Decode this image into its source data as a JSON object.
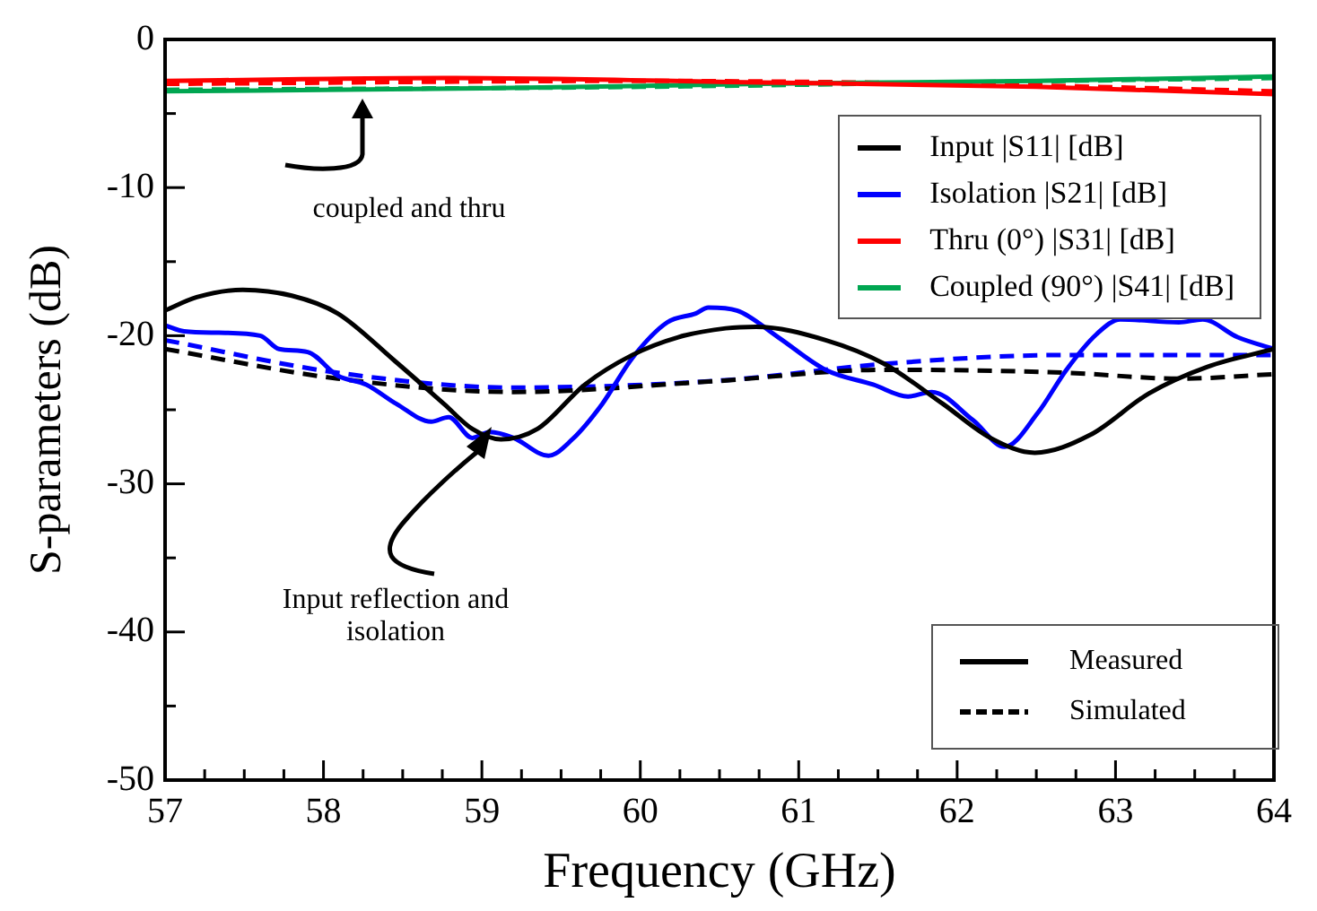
{
  "chart_data": {
    "type": "line",
    "xlabel": "Frequency (GHz)",
    "ylabel": "S-parameters (dB)",
    "xlim": [
      57,
      64
    ],
    "ylim": [
      -50,
      0
    ],
    "xticks": [
      57,
      {
        "value": 57.25,
        "label": null
      },
      {
        "value": 57.5,
        "label": null
      },
      {
        "value": 57.75,
        "label": null
      },
      58,
      {
        "value": 58.25,
        "label": null
      },
      {
        "value": 58.5,
        "label": null
      },
      {
        "value": 58.75,
        "label": null
      },
      59,
      {
        "value": 59.25,
        "label": null
      },
      {
        "value": 59.5,
        "label": null
      },
      {
        "value": 59.75,
        "label": null
      },
      60,
      {
        "value": 60.25,
        "label": null
      },
      {
        "value": 60.5,
        "label": null
      },
      {
        "value": 60.75,
        "label": null
      },
      61,
      {
        "value": 61.25,
        "label": null
      },
      {
        "value": 61.5,
        "label": null
      },
      {
        "value": 61.75,
        "label": null
      },
      62,
      {
        "value": 62.25,
        "label": null
      },
      {
        "value": 62.5,
        "label": null
      },
      {
        "value": 62.75,
        "label": null
      },
      63,
      {
        "value": 63.25,
        "label": null
      },
      {
        "value": 63.5,
        "label": null
      },
      {
        "value": 63.75,
        "label": null
      },
      64
    ],
    "yticks": [
      -50,
      {
        "value": -45,
        "label": null
      },
      -40,
      {
        "value": -35,
        "label": null
      },
      -30,
      {
        "value": -25,
        "label": null
      },
      -20,
      {
        "value": -15,
        "label": null
      },
      -10,
      {
        "value": -5,
        "label": null
      },
      0
    ],
    "grid": false,
    "legend": "top right",
    "series": [
      {
        "name": "Input |S11| [dB]",
        "color": "#000000",
        "line_style": "solid",
        "x": [
          57.0,
          57.2,
          57.49,
          57.8,
          58.09,
          58.45,
          58.76,
          58.94,
          59.12,
          59.35,
          59.65,
          59.95,
          60.24,
          60.54,
          60.73,
          61.17,
          61.54,
          61.91,
          62.21,
          62.49,
          62.84,
          63.21,
          63.58,
          64.0
        ],
        "values": [
          -18.3,
          -17.4,
          -16.9,
          -17.3,
          -18.5,
          -21.7,
          -24.6,
          -26.3,
          -27.0,
          -26.3,
          -23.3,
          -21.3,
          -20.1,
          -19.5,
          -19.4,
          -20.3,
          -21.9,
          -24.6,
          -26.9,
          -27.9,
          -26.7,
          -23.9,
          -22.1,
          -20.9
        ]
      },
      {
        "name": "Isolation |S21| [dB]",
        "color": "#0000ff",
        "line_style": "solid",
        "x": [
          57.0,
          57.12,
          57.34,
          57.6,
          57.72,
          57.9,
          58.09,
          58.27,
          58.46,
          58.68,
          58.79,
          58.94,
          59.05,
          59.2,
          59.42,
          59.57,
          59.76,
          59.95,
          60.17,
          60.35,
          60.43,
          60.61,
          60.87,
          61.17,
          61.47,
          61.69,
          61.84,
          62.1,
          62.3,
          62.51,
          62.69,
          62.88,
          63.03,
          63.4,
          63.55,
          63.77,
          64.0
        ],
        "values": [
          -19.3,
          -19.7,
          -19.8,
          -20.0,
          -20.9,
          -21.1,
          -22.7,
          -23.3,
          -24.6,
          -25.8,
          -25.5,
          -26.9,
          -26.5,
          -26.9,
          -28.1,
          -27.0,
          -24.6,
          -21.5,
          -19.1,
          -18.5,
          -18.1,
          -18.3,
          -20.1,
          -22.3,
          -23.3,
          -24.1,
          -23.8,
          -25.7,
          -27.5,
          -25.2,
          -22.3,
          -19.9,
          -18.9,
          -19.1,
          -18.9,
          -20.1,
          -20.9
        ]
      },
      {
        "name": "Thru (0°) |S31| [dB]",
        "color": "#ff0000",
        "line_style": "solid",
        "x": [
          57.0,
          58.76,
          60.76,
          62.5,
          64.0
        ],
        "values": [
          -2.8,
          -2.6,
          -2.9,
          -3.2,
          -3.7
        ]
      },
      {
        "name": "Coupled (90°) |S41| [dB]",
        "color": "#00a651",
        "line_style": "solid",
        "x": [
          57.0,
          59.0,
          60.76,
          62.5,
          64.0
        ],
        "values": [
          -3.5,
          -3.3,
          -3.0,
          -2.8,
          -2.5
        ]
      },
      {
        "color": "#000000",
        "line_style": "dashed",
        "x": [
          57.0,
          58.09,
          59.2,
          60.43,
          61.54,
          62.69,
          63.4,
          64.0
        ],
        "values": [
          -20.9,
          -22.9,
          -23.8,
          -23.1,
          -22.3,
          -22.5,
          -22.9,
          -22.6
        ]
      },
      {
        "color": "#0000ff",
        "line_style": "dashed",
        "x": [
          57.0,
          58.09,
          59.2,
          60.54,
          61.54,
          62.69,
          64.0
        ],
        "values": [
          -20.3,
          -22.5,
          -23.5,
          -23.0,
          -21.9,
          -21.3,
          -21.3
        ]
      },
      {
        "color": "#ff0000",
        "line_style": "dashed",
        "x": [
          57.0,
          60.0,
          62.0,
          64.0
        ],
        "values": [
          -3.0,
          -2.8,
          -3.0,
          -3.5
        ]
      },
      {
        "color": "#00a651",
        "line_style": "dashed",
        "x": [
          57.0,
          60.0,
          62.0,
          64.0
        ],
        "values": [
          -3.4,
          -3.2,
          -2.9,
          -2.6
        ]
      }
    ],
    "annotations": [
      "coupled and thru",
      "Input reflection and isolation",
      "Measured",
      "Simulated"
    ]
  }
}
